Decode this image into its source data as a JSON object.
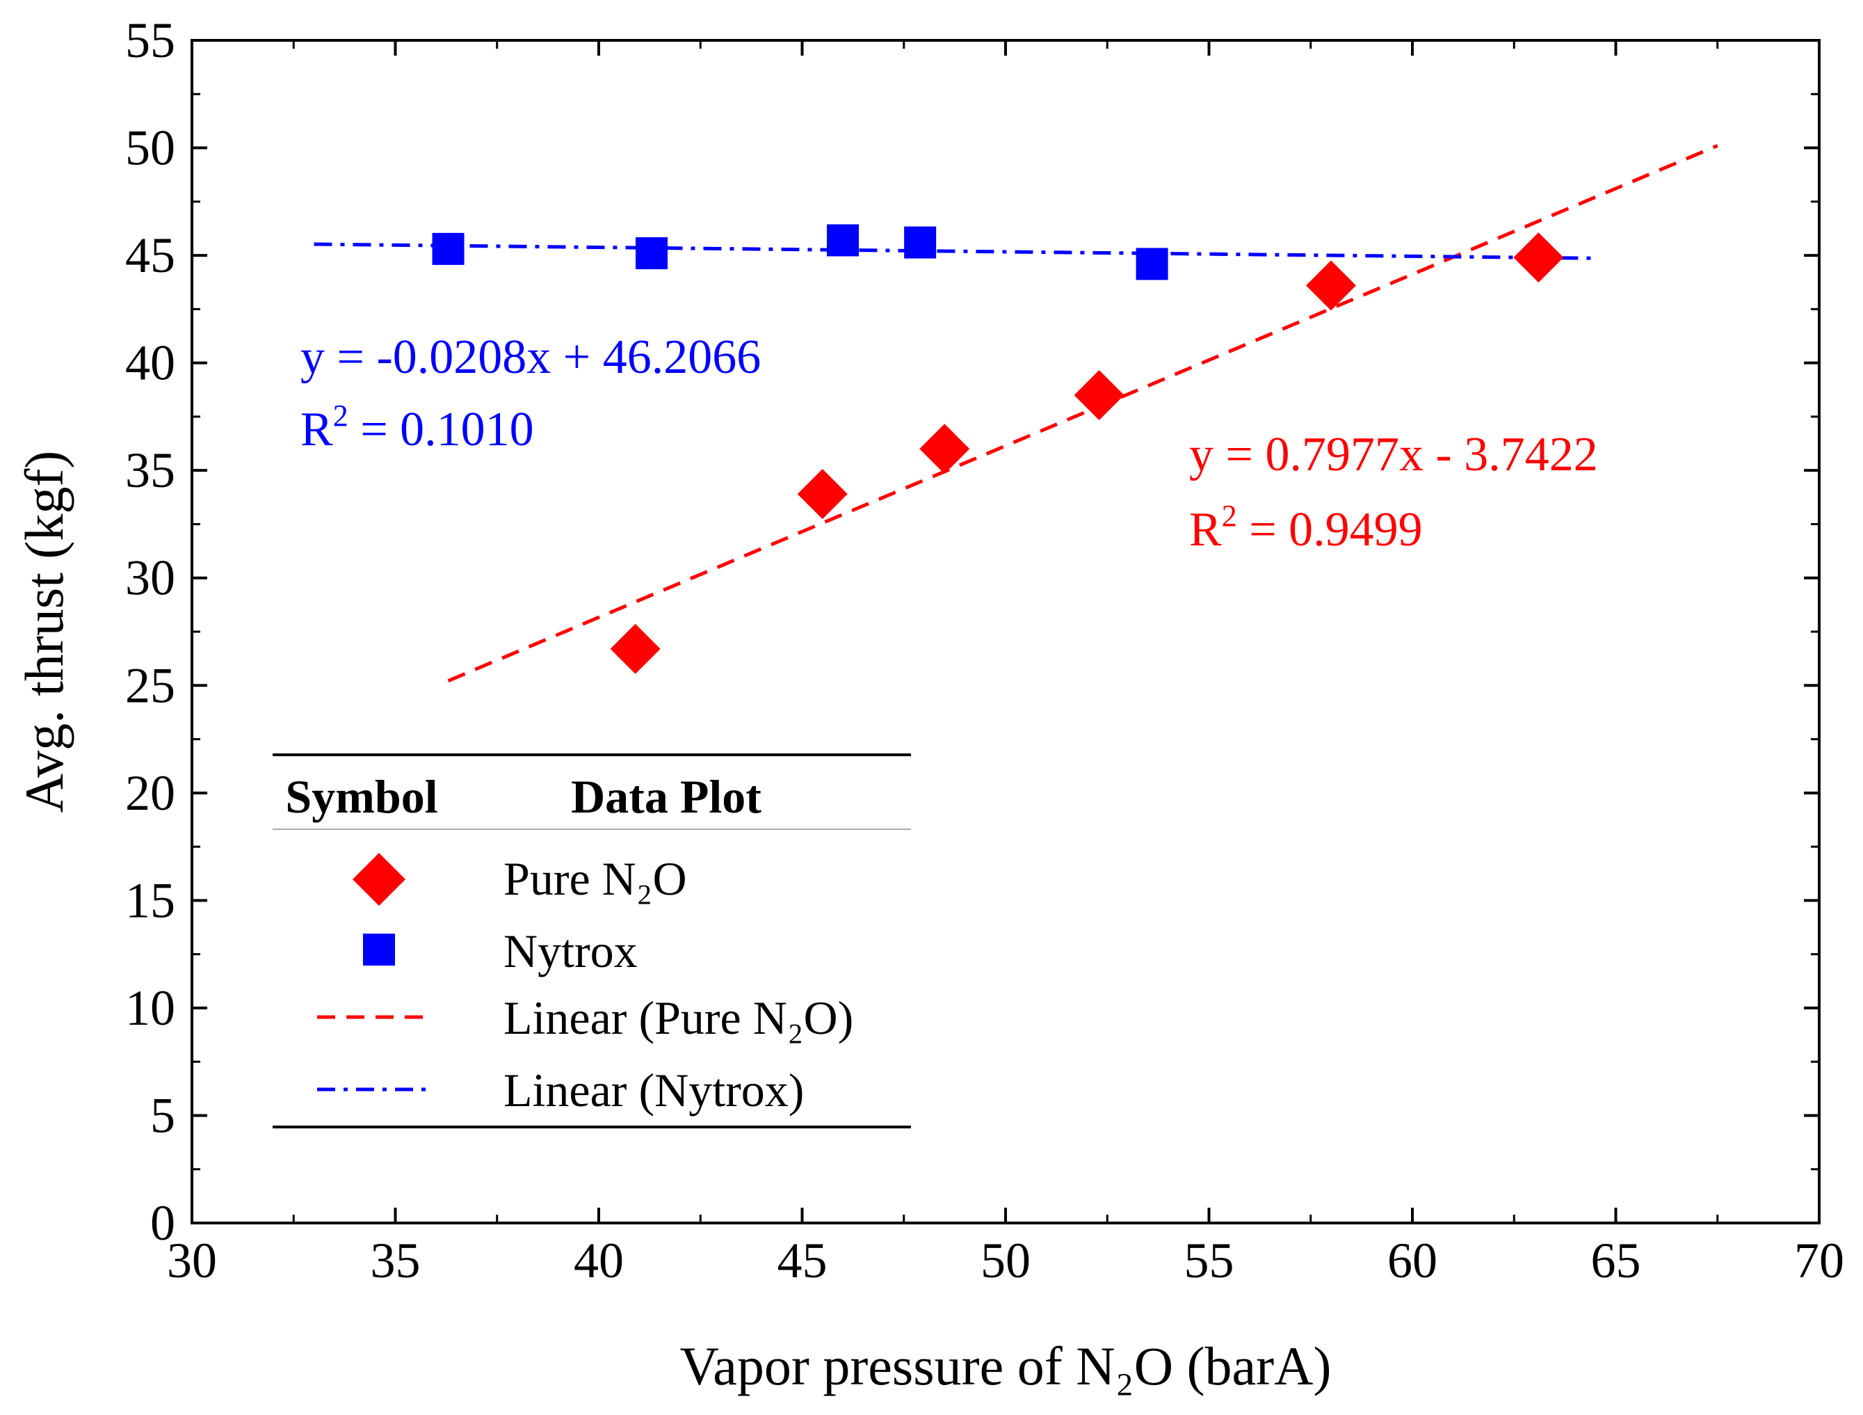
{
  "chart_data": {
    "type": "scatter",
    "xlabel": "Vapor pressure of N₂O (barA)",
    "ylabel": "Avg. thrust (kgf)",
    "xlim": [
      30,
      70
    ],
    "ylim": [
      0,
      55
    ],
    "xticks": [
      "30",
      "35",
      "40",
      "45",
      "50",
      "55",
      "60",
      "65",
      "70"
    ],
    "yticks": [
      "0",
      "5",
      "10",
      "15",
      "20",
      "25",
      "30",
      "35",
      "40",
      "45",
      "50",
      "55"
    ],
    "colors": {
      "pure": "#ff0000",
      "nytrox": "#0000ff",
      "axis": "#000000"
    },
    "series": [
      {
        "name": "Pure N2O",
        "marker": "diamond",
        "x": [
          40.9,
          45.5,
          48.5,
          52.3,
          58.0,
          63.1
        ],
        "y": [
          26.7,
          33.9,
          36.0,
          38.5,
          43.6,
          44.9
        ]
      },
      {
        "name": "Nytrox",
        "marker": "square",
        "x": [
          36.3,
          41.3,
          46.0,
          47.9,
          53.6
        ],
        "y": [
          45.3,
          45.1,
          45.7,
          45.6,
          44.6
        ]
      }
    ],
    "fits": [
      {
        "name": "Linear (Pure N2O)",
        "slope": 0.7977,
        "intercept": -3.7422,
        "x_range": [
          36.3,
          67.5
        ],
        "style": "dashed"
      },
      {
        "name": "Linear (Nytrox)",
        "slope": -0.0208,
        "intercept": 46.2066,
        "x_range": [
          33.0,
          64.5
        ],
        "style": "dash-dot"
      }
    ],
    "annotations": {
      "nytrox_eq": "y = -0.0208x + 46.2066",
      "nytrox_r2_label": "R",
      "nytrox_r2_sup": "2",
      "nytrox_r2_value": " = 0.1010",
      "pure_eq": "y = 0.7977x - 3.7422",
      "pure_r2_label": "R",
      "pure_r2_sup": "2",
      "pure_r2_value": " = 0.9499"
    },
    "legend": {
      "header_symbol": "Symbol",
      "header_plot": "Data Plot",
      "placement": "bottom-left",
      "entries": [
        "Pure N₂O",
        "Nytrox",
        "Linear (Pure N₂O)",
        "Linear (Nytrox)"
      ]
    }
  }
}
